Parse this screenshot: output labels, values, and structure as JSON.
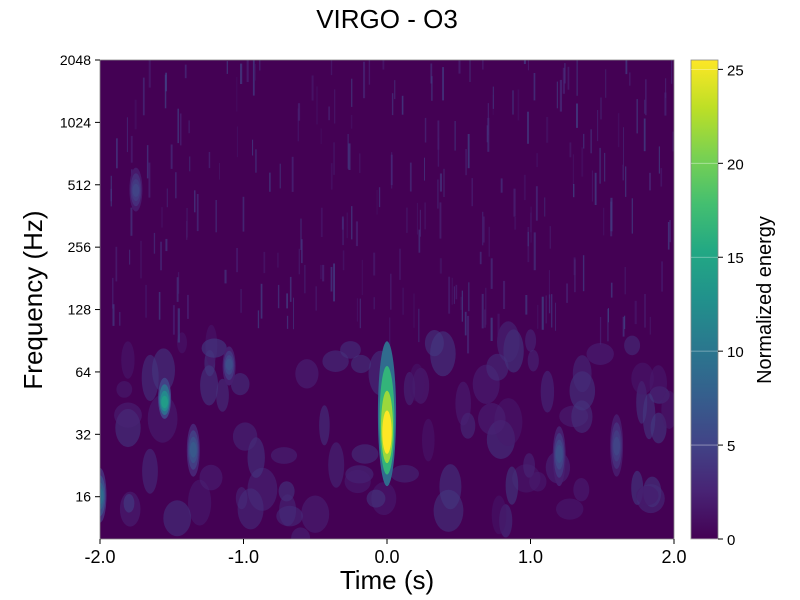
{
  "chart_data": {
    "type": "heatmap",
    "title": "VIRGO - O3",
    "xlabel": "Time (s)",
    "ylabel": "Frequency (Hz)",
    "xlim": [
      -2.0,
      2.0
    ],
    "ylim": [
      10,
      2048
    ],
    "y_scale": "log2",
    "x_ticks": [
      -2.0,
      -1.0,
      0.0,
      1.0,
      2.0
    ],
    "x_tick_labels": [
      "-2.0",
      "-1.0",
      "0.0",
      "1.0",
      "2.0"
    ],
    "y_ticks": [
      16,
      32,
      64,
      128,
      256,
      512,
      1024,
      2048
    ],
    "y_tick_labels": [
      "16",
      "32",
      "64",
      "128",
      "256",
      "512",
      "1024",
      "2048"
    ],
    "colorbar": {
      "label": "Normalized energy",
      "range": [
        0,
        25.5
      ],
      "ticks": [
        0,
        5,
        10,
        15,
        20,
        25
      ],
      "tick_labels": [
        "0",
        "5",
        "10",
        "15",
        "20",
        "25"
      ],
      "colormap": "viridis"
    },
    "features": [
      {
        "time": 0.0,
        "freq_low": 18,
        "freq_high": 90,
        "peak_freq": 30,
        "energy": 25.5
      },
      {
        "time": -1.55,
        "freq_low": 38,
        "freq_high": 60,
        "peak_freq": 45,
        "energy": 14
      },
      {
        "time": -2.0,
        "freq_low": 12,
        "freq_high": 22,
        "peak_freq": 16,
        "energy": 9
      },
      {
        "time": -1.35,
        "freq_low": 20,
        "freq_high": 36,
        "peak_freq": 27,
        "energy": 7
      },
      {
        "time": -1.1,
        "freq_low": 55,
        "freq_high": 85,
        "peak_freq": 70,
        "energy": 6
      },
      {
        "time": 1.2,
        "freq_low": 18,
        "freq_high": 35,
        "peak_freq": 26,
        "energy": 6
      },
      {
        "time": 1.6,
        "freq_low": 20,
        "freq_high": 40,
        "peak_freq": 28,
        "energy": 5
      },
      {
        "time": -1.75,
        "freq_low": 380,
        "freq_high": 620,
        "peak_freq": 480,
        "energy": 5
      }
    ]
  }
}
